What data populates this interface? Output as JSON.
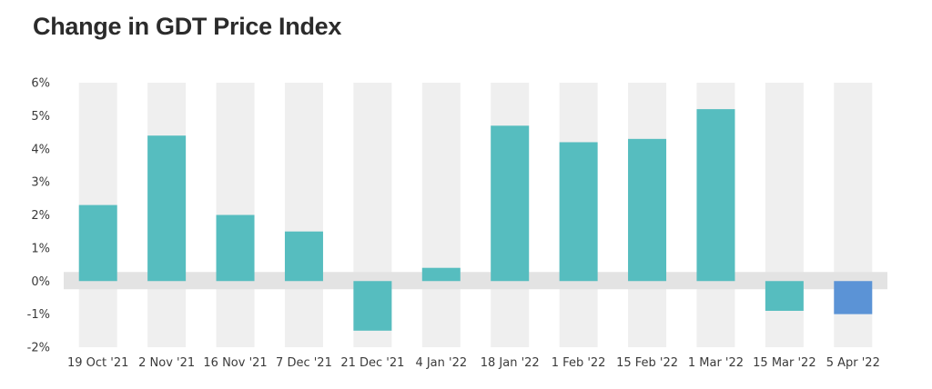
{
  "title": "Change in GDT Price Index",
  "colors": {
    "bar": "#56bdbf",
    "highlight": "#5b93d6",
    "band": "#efefef",
    "zero_band": "#e3e3e3"
  },
  "chart_data": {
    "type": "bar",
    "title": "Change in GDT Price Index",
    "xlabel": "",
    "ylabel": "",
    "categories": [
      "19 Oct '21",
      "2 Nov '21",
      "16 Nov '21",
      "7 Dec '21",
      "21 Dec '21",
      "4 Jan '22",
      "18 Jan '22",
      "1 Feb '22",
      "15 Feb '22",
      "1 Mar '22",
      "15 Mar '22",
      "5 Apr '22"
    ],
    "values": [
      2.3,
      4.4,
      2.0,
      1.5,
      -1.5,
      0.4,
      4.7,
      4.2,
      4.3,
      5.2,
      -0.9,
      -1.0
    ],
    "highlight_index": 11,
    "ylim": [
      -2,
      6
    ],
    "yticks": [
      6,
      5,
      4,
      3,
      2,
      1,
      0,
      -1,
      -2
    ],
    "ytick_labels": [
      "6%",
      "5%",
      "4%",
      "3%",
      "2%",
      "1%",
      "0%",
      "-1%",
      "-2%"
    ],
    "alternating_bands": true,
    "legend": "none"
  }
}
